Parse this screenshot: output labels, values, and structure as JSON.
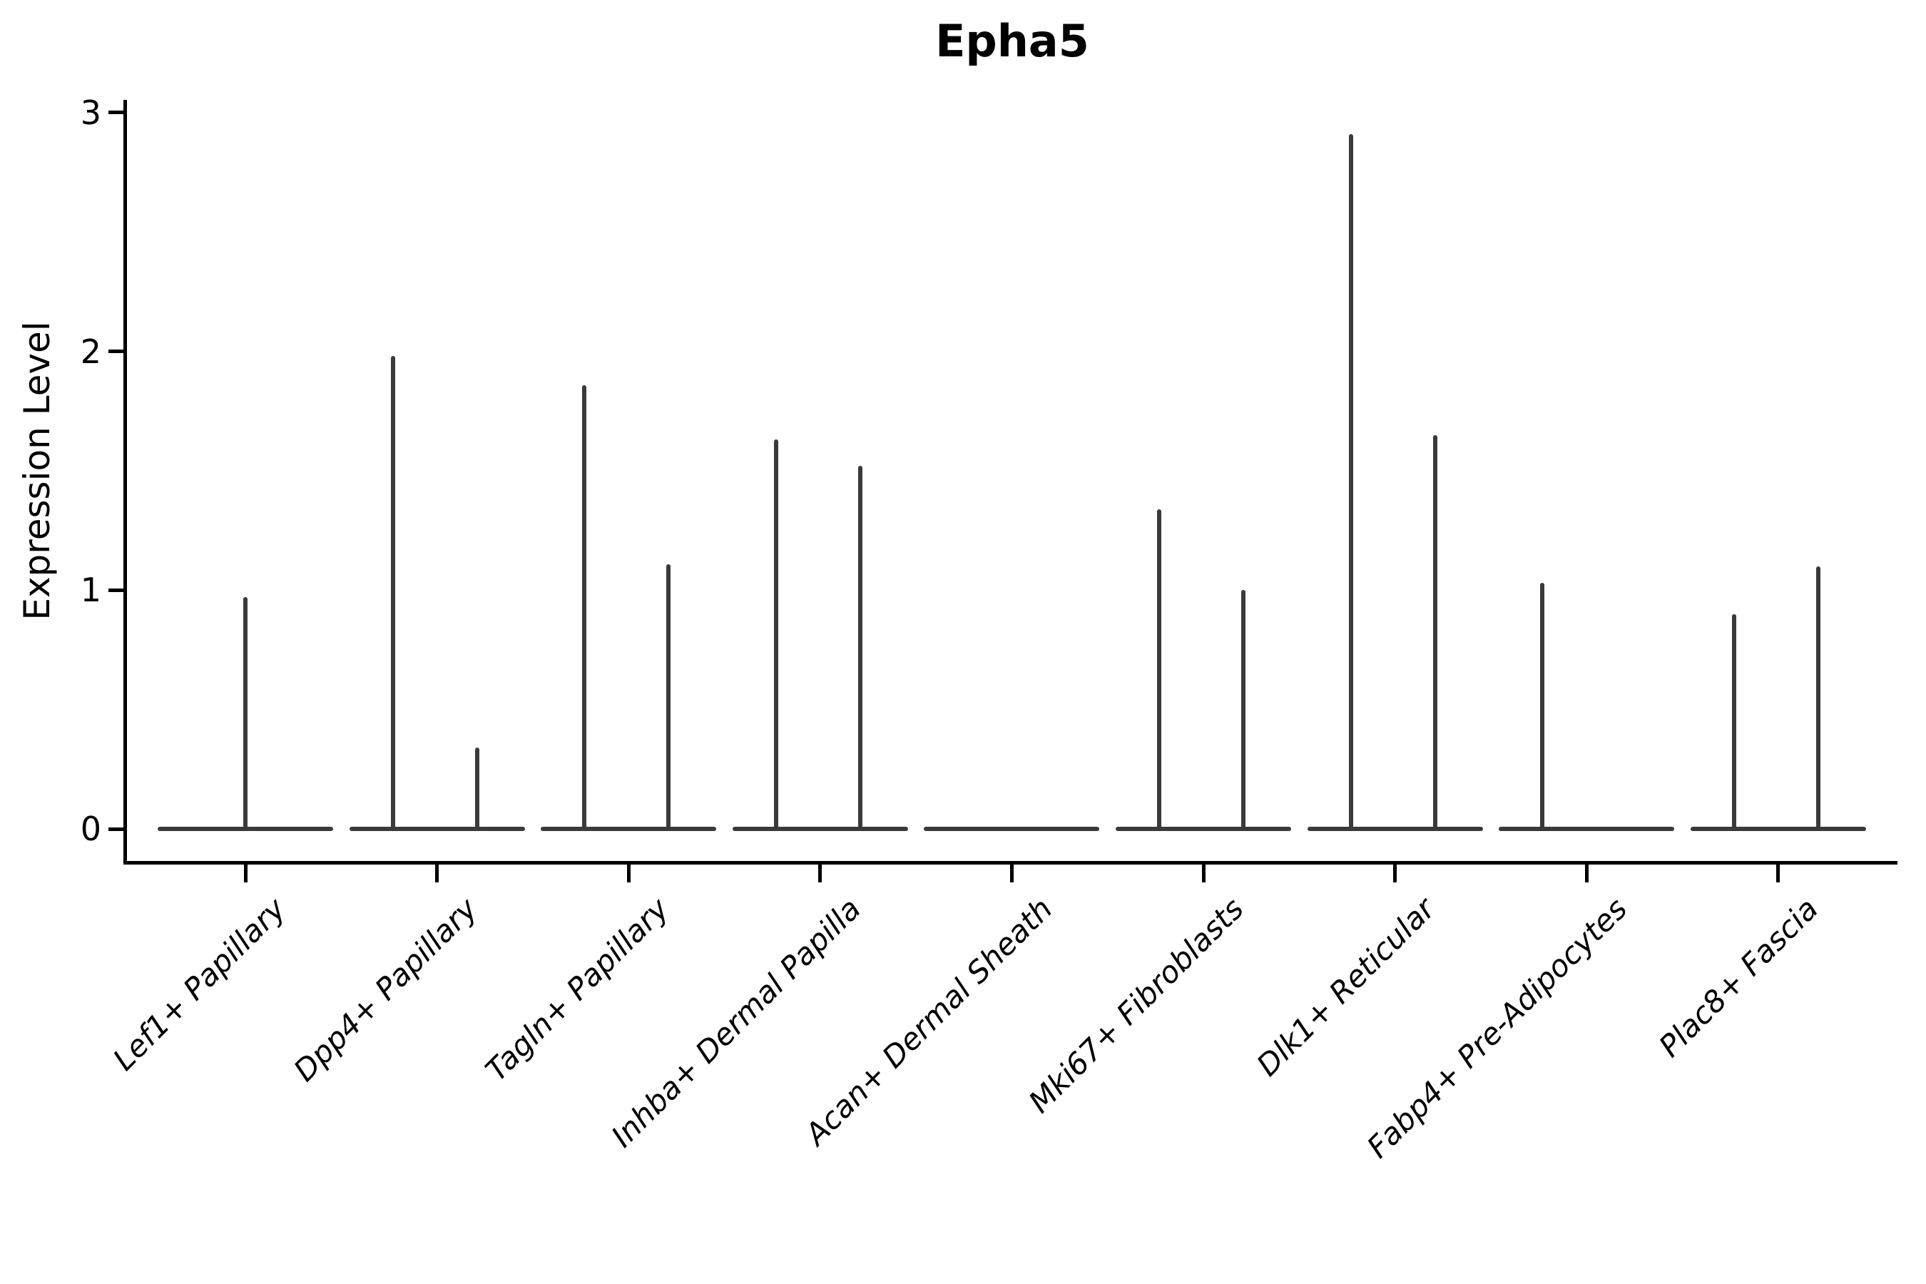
{
  "chart_data": {
    "type": "violin",
    "title": "Epha5",
    "ylabel": "Expression Level",
    "xlabel": "",
    "ylim": [
      0,
      3
    ],
    "yticks": [
      0,
      1,
      2,
      3
    ],
    "grid": false,
    "legend": "none",
    "line_color": "#3a3a3a",
    "axis_color": "#000000",
    "background_color": "#ffffff",
    "categories": [
      "Lef1+ Papillary",
      "Dpp4+ Papillary",
      "Tagln+ Papillary",
      "Inhba+ Dermal Papilla",
      "Acan+ Dermal Sheath",
      "Mki67+ Fibroblasts",
      "Dlk1+ Reticular",
      "Fabp4+ Pre-Adipocytes",
      "Plac8+ Fascia"
    ],
    "violins": [
      {
        "category": "Lef1+ Papillary",
        "base_at_zero": true,
        "spikes": [
          {
            "offset": "center",
            "max_expression": 0.97
          }
        ]
      },
      {
        "category": "Dpp4+ Papillary",
        "base_at_zero": true,
        "spikes": [
          {
            "offset": "left",
            "max_expression": 1.98
          },
          {
            "offset": "right",
            "max_expression": 0.34
          }
        ]
      },
      {
        "category": "Tagln+ Papillary",
        "base_at_zero": true,
        "spikes": [
          {
            "offset": "left",
            "max_expression": 1.86
          },
          {
            "offset": "right",
            "max_expression": 1.11
          }
        ]
      },
      {
        "category": "Inhba+ Dermal Papilla",
        "base_at_zero": true,
        "spikes": [
          {
            "offset": "left",
            "max_expression": 1.63
          },
          {
            "offset": "right",
            "max_expression": 1.52
          }
        ]
      },
      {
        "category": "Acan+ Dermal Sheath",
        "base_at_zero": true,
        "spikes": []
      },
      {
        "category": "Mki67+ Fibroblasts",
        "base_at_zero": true,
        "spikes": [
          {
            "offset": "left",
            "max_expression": 1.34
          },
          {
            "offset": "right",
            "max_expression": 1.0
          }
        ]
      },
      {
        "category": "Dlk1+ Reticular",
        "base_at_zero": true,
        "spikes": [
          {
            "offset": "left",
            "max_expression": 2.91
          },
          {
            "offset": "right",
            "max_expression": 1.65
          }
        ]
      },
      {
        "category": "Fabp4+ Pre-Adipocytes",
        "base_at_zero": true,
        "spikes": [
          {
            "offset": "left",
            "max_expression": 1.03
          }
        ]
      },
      {
        "category": "Plac8+ Fascia",
        "base_at_zero": true,
        "spikes": [
          {
            "offset": "left",
            "max_expression": 0.9
          },
          {
            "offset": "right",
            "max_expression": 1.1
          }
        ]
      }
    ]
  }
}
